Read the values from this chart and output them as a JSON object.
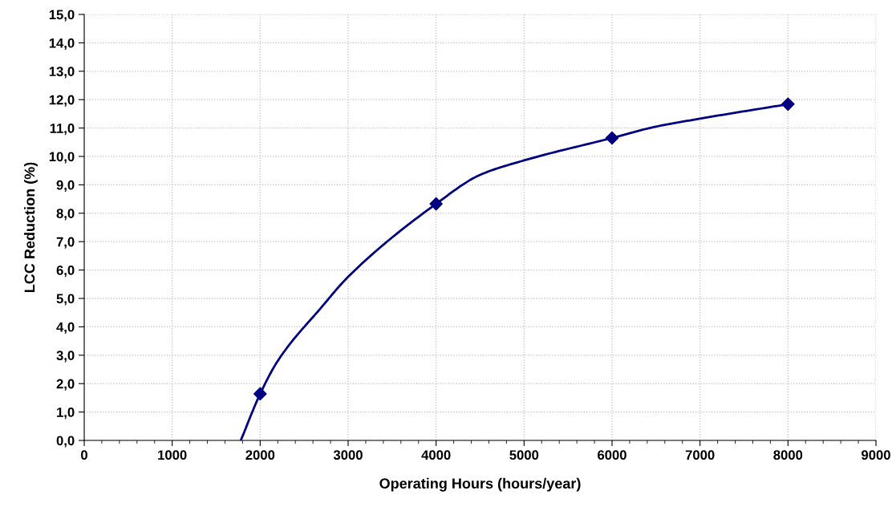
{
  "chart_data": {
    "type": "line",
    "xlabel": "Operating Hours (hours/year)",
    "ylabel": "LCC Reduction (%)",
    "series": [
      {
        "color": "#000080",
        "marker": "none",
        "x": [
          1780,
          2000,
          2200,
          2700,
          3000,
          4000,
          4500,
          5000,
          6000,
          6500,
          7000,
          8000
        ],
        "values": [
          0,
          1.64,
          2.8,
          4.7,
          5.76,
          8.33,
          9.35,
          9.86,
          10.65,
          11.05,
          11.33,
          11.84
        ]
      },
      {
        "type": "scatter",
        "color": "#000080",
        "marker": "diamond",
        "x": [
          2000,
          4000,
          6000,
          8000
        ],
        "values": [
          1.64,
          8.33,
          10.65,
          11.84
        ]
      }
    ],
    "xlim": [
      0,
      9000
    ],
    "xticks": [
      0,
      1000,
      2000,
      3000,
      4000,
      5000,
      6000,
      7000,
      8000,
      9000
    ],
    "ylim": [
      0,
      15
    ],
    "yticks": [
      {
        "value": 0,
        "label": "0,0"
      },
      {
        "value": 1,
        "label": "1,0"
      },
      {
        "value": 2,
        "label": "2,0"
      },
      {
        "value": 3,
        "label": "3,0"
      },
      {
        "value": 4,
        "label": "4,0"
      },
      {
        "value": 5,
        "label": "5,0"
      },
      {
        "value": 6,
        "label": "6,0"
      },
      {
        "value": 7,
        "label": "7,0"
      },
      {
        "value": 8,
        "label": "8,0"
      },
      {
        "value": 9,
        "label": "9,0"
      },
      {
        "value": 10,
        "label": "10,0"
      },
      {
        "value": 11,
        "label": "11,0"
      },
      {
        "value": 12,
        "label": "12,0"
      },
      {
        "value": 13,
        "label": "13,0"
      },
      {
        "value": 14,
        "label": "14,0"
      },
      {
        "value": 15,
        "label": "15,0"
      }
    ],
    "grid": true,
    "legend": false
  }
}
